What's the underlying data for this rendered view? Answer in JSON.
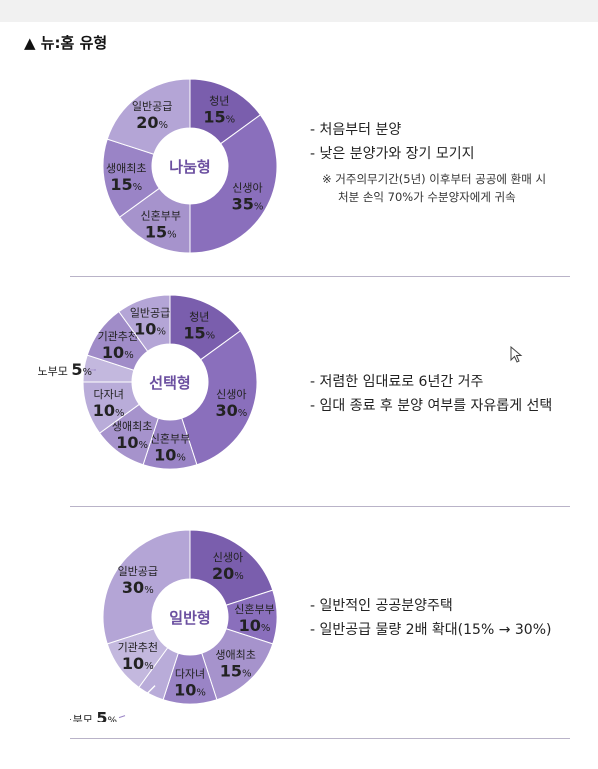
{
  "heading": "▲ 뉴:홈 유형",
  "chart_data": [
    {
      "type": "pie",
      "title": "나눔형",
      "slices": [
        {
          "label": "청년",
          "value": 15
        },
        {
          "label": "신생아",
          "value": 35
        },
        {
          "label": "신혼부부",
          "value": 15
        },
        {
          "label": "생애최초",
          "value": 15
        },
        {
          "label": "일반공급",
          "value": 20
        }
      ],
      "unit": "%",
      "callout": null
    },
    {
      "type": "pie",
      "title": "선택형",
      "slices": [
        {
          "label": "청년",
          "value": 15
        },
        {
          "label": "신생아",
          "value": 30
        },
        {
          "label": "신혼부부",
          "value": 10
        },
        {
          "label": "생애최초",
          "value": 10
        },
        {
          "label": "다자녀",
          "value": 10
        },
        {
          "label": "노부모",
          "value": 5
        },
        {
          "label": "기관추천",
          "value": 10
        },
        {
          "label": "일반공급",
          "value": 10
        }
      ],
      "unit": "%",
      "callout": "노부모"
    },
    {
      "type": "pie",
      "title": "일반형",
      "slices": [
        {
          "label": "신생아",
          "value": 20
        },
        {
          "label": "신혼부부",
          "value": 10
        },
        {
          "label": "생애최초",
          "value": 15
        },
        {
          "label": "다자녀",
          "value": 10
        },
        {
          "label": "노부모",
          "value": 5
        },
        {
          "label": "기관추천",
          "value": 10
        },
        {
          "label": "일반공급",
          "value": 30
        }
      ],
      "unit": "%",
      "callout": "노부모"
    }
  ],
  "descriptions": [
    {
      "bullets": [
        "- 처음부터 분양",
        "- 낮은 분양가와 장기 모기지"
      ],
      "note_line1": "※ 거주의무기간(5년) 이후부터 공공에 환매 시",
      "note_line2": "처분 손익 70%가 수분양자에게 귀속"
    },
    {
      "bullets": [
        "- 저렴한 임대료로 6년간 거주",
        "- 임대 종료 후 분양 여부를 자유롭게 선택"
      ]
    },
    {
      "bullets": [
        "- 일반적인 공공분양주택",
        "- 일반공급 물량 2배 확대(15% → 30%)"
      ]
    }
  ],
  "colors": {
    "palette": [
      "#7a5ead",
      "#8a6fbc",
      "#9a84c6",
      "#a693cc",
      "#b4a5d6",
      "#b9acd9",
      "#c3b8de",
      "#a08cc8"
    ],
    "center_text": "#6b4fa0",
    "divider": "#b9b3c8"
  }
}
